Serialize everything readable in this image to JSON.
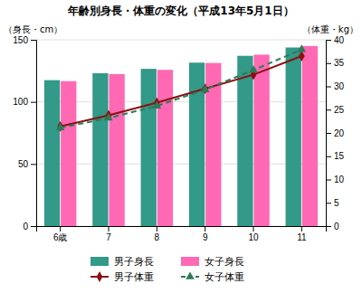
{
  "chart_data": {
    "type": "bar",
    "title": "年齢別身長・体重の変化（平成13年5月1日）",
    "ylabel": "（身長・cm）",
    "y2label": "（体重・kg）",
    "categories": [
      "6歳",
      "7",
      "8",
      "9",
      "10",
      "11"
    ],
    "series": [
      {
        "name": "男子身長",
        "color": "#339988",
        "values": [
          117.5,
          123.1,
          126.6,
          131.6,
          137.1,
          143.8
        ]
      },
      {
        "name": "女子身長",
        "color": "#FF69B4",
        "values": [
          116.7,
          122.4,
          125.8,
          131.3,
          138.0,
          145.0
        ]
      },
      {
        "name": "男子体重",
        "type": "line",
        "axis": "y2",
        "color": "#8B1010",
        "marker": "diamond",
        "line_style": "solid",
        "values": [
          21.4,
          23.8,
          26.5,
          29.5,
          32.5,
          36.5
        ]
      },
      {
        "name": "女子体重",
        "type": "line",
        "axis": "y2",
        "color": "#2E7B57",
        "marker": "triangle",
        "line_style": "dashed",
        "values": [
          21.1,
          23.2,
          25.8,
          29.3,
          33.5,
          37.9
        ]
      }
    ],
    "ylim": [
      0,
      150
    ],
    "yticks": [
      0,
      50,
      100,
      150
    ],
    "y2lim": [
      0,
      40
    ],
    "y2ticks": [
      0,
      5,
      10,
      15,
      20,
      25,
      30,
      35,
      40
    ],
    "grid": true,
    "legend": "bottom"
  }
}
